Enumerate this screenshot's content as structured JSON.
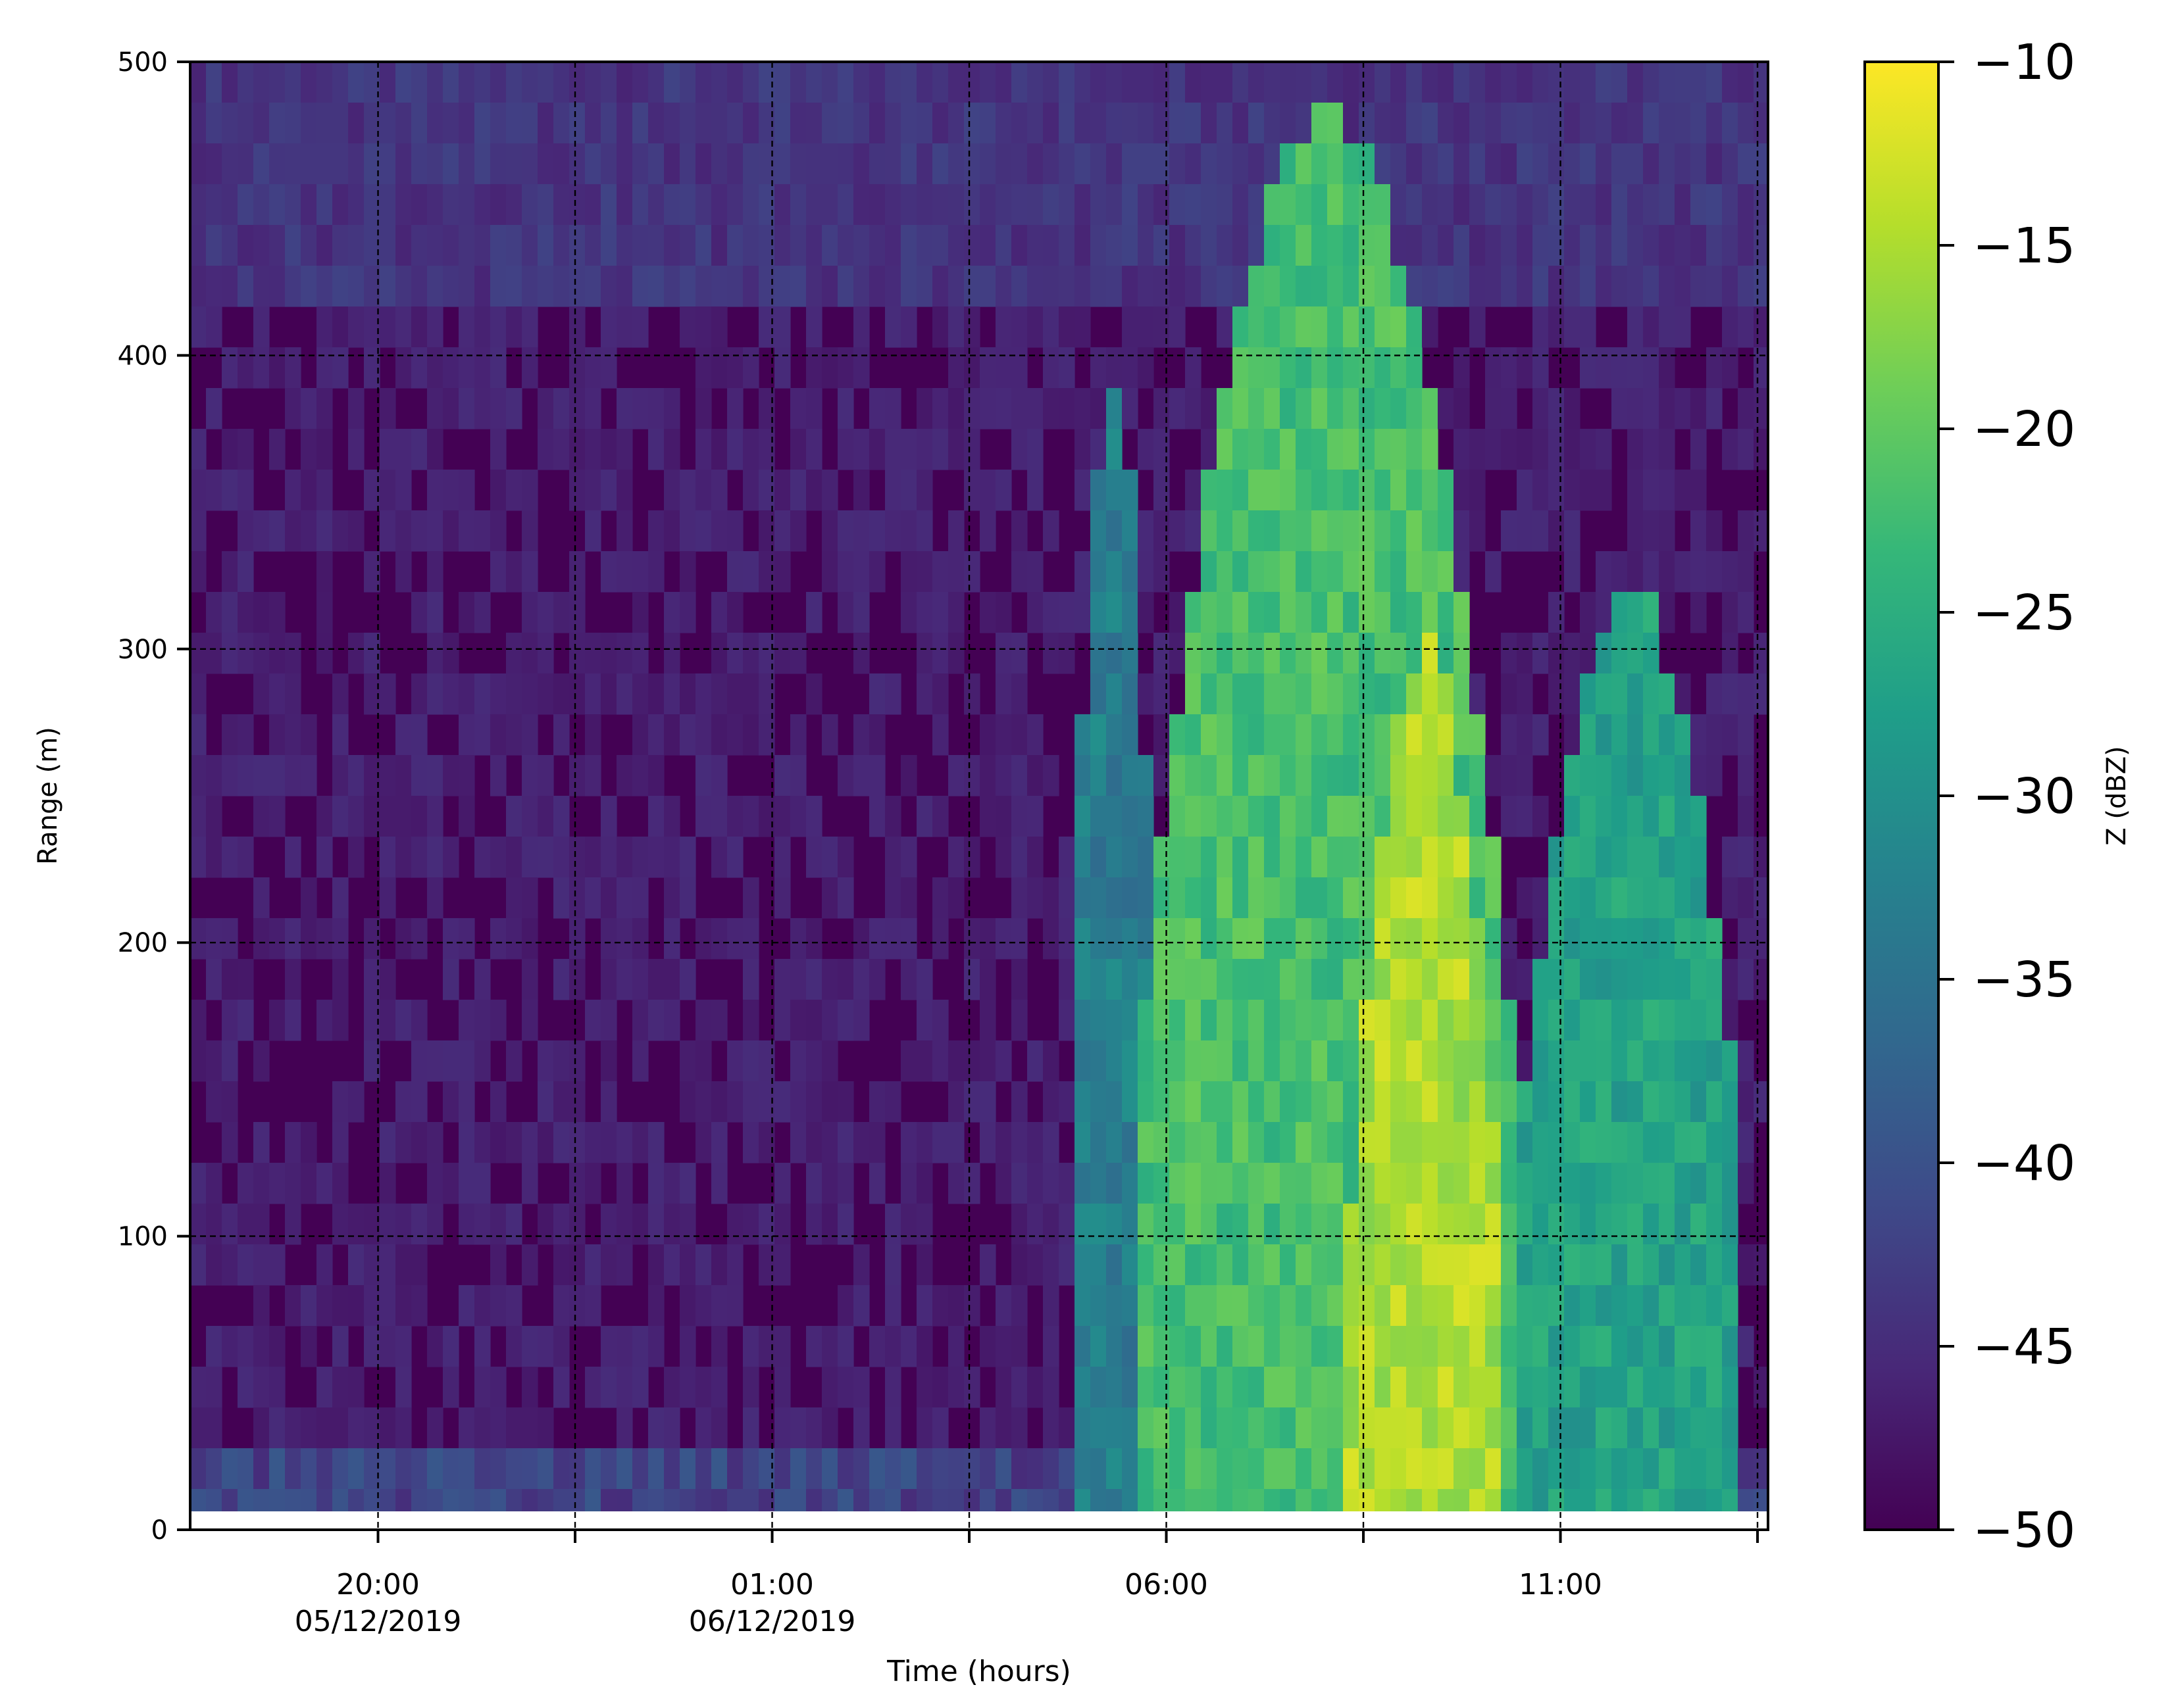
{
  "chart_data": {
    "type": "heatmap",
    "title": "",
    "xlabel": "Time (hours)",
    "ylabel": "Range (m)",
    "xlim": [
      "2019-12-05T17:37",
      "2019-12-06T13:38"
    ],
    "ylim": [
      0,
      500
    ],
    "x_ticks": [
      {
        "time": "2019-12-05T20:00",
        "label_lines": [
          "20:00",
          "05/12/2019"
        ]
      },
      {
        "time": "2019-12-05T22:30",
        "label_lines": []
      },
      {
        "time": "2019-12-06T01:00",
        "label_lines": [
          "01:00",
          "06/12/2019"
        ]
      },
      {
        "time": "2019-12-06T03:30",
        "label_lines": []
      },
      {
        "time": "2019-12-06T06:00",
        "label_lines": [
          "06:00"
        ]
      },
      {
        "time": "2019-12-06T08:30",
        "label_lines": []
      },
      {
        "time": "2019-12-06T11:00",
        "label_lines": [
          "11:00"
        ]
      },
      {
        "time": "2019-12-06T13:30",
        "label_lines": []
      }
    ],
    "y_ticks": [
      0,
      100,
      200,
      300,
      400,
      500
    ],
    "grid": true,
    "colorbar": {
      "label": "Z (dBZ)",
      "range": [
        -50,
        -10
      ],
      "ticks": [
        -10,
        -15,
        -20,
        -25,
        -30,
        -35,
        -40,
        -45,
        -50
      ],
      "tick_labels": [
        "−10",
        "−15",
        "−20",
        "−25",
        "−30",
        "−35",
        "−40",
        "−45",
        "−50"
      ],
      "colormap": "viridis",
      "colors": [
        "#440154",
        "#482878",
        "#3e4a89",
        "#31688e",
        "#26828e",
        "#1f9e89",
        "#35b779",
        "#6ece58",
        "#b5de2b",
        "#fde725"
      ]
    },
    "missing_data_below_m": 6,
    "features": [
      {
        "name": "surface-layer",
        "times": [
          "2019-12-05T17:37",
          "2019-12-06T13:38"
        ],
        "top_m": 30,
        "dbz": -42
      },
      {
        "name": "cloud-precursor",
        "times": [
          "2019-12-06T04:45",
          "2019-12-06T05:55"
        ],
        "top_m": 390,
        "dbz": -33
      },
      {
        "name": "main-cloud",
        "times": [
          "2019-12-06T05:40",
          "2019-12-06T10:25"
        ],
        "top_m": 480,
        "dbz": -22
      },
      {
        "name": "core",
        "times": [
          "2019-12-06T08:20",
          "2019-12-06T10:15"
        ],
        "top_m": 300,
        "dbz": -15
      },
      {
        "name": "second-cloud",
        "times": [
          "2019-12-06T10:25",
          "2019-12-06T13:20"
        ],
        "top_m": 320,
        "dbz": -27
      }
    ]
  }
}
